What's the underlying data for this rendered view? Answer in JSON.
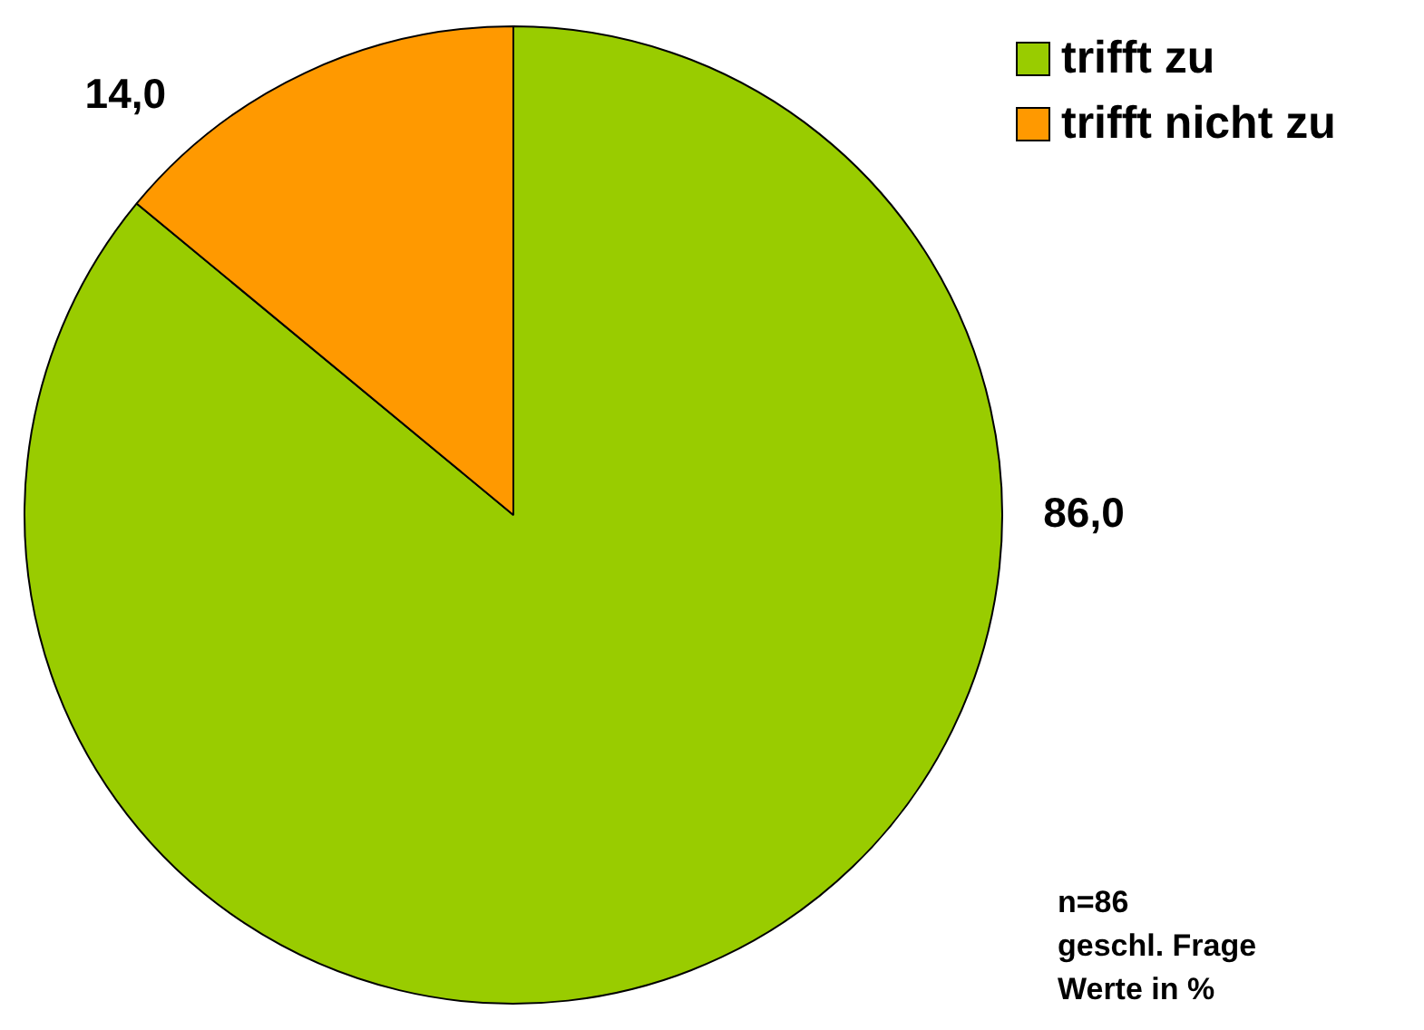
{
  "chart_data": {
    "type": "pie",
    "categories": [
      "trifft zu",
      "trifft nicht zu"
    ],
    "values": [
      86,
      14
    ],
    "colors": [
      "#99cc00",
      "#ff9900"
    ],
    "value_labels": [
      "86,0",
      "14,0"
    ],
    "legend": "top right",
    "annotations": [
      "n=86",
      "geschl. Frage",
      "Werte in %"
    ]
  }
}
